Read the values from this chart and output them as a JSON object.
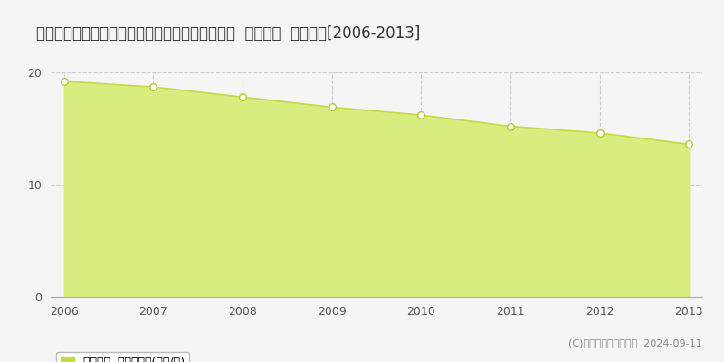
{
  "title": "和歌山県日高郡みなべ町徳蔵字白田１５６番４外  地価公示  地価推移[2006-2013]",
  "years": [
    2006,
    2007,
    2008,
    2009,
    2010,
    2011,
    2012,
    2013
  ],
  "values": [
    19.2,
    18.7,
    17.8,
    16.9,
    16.2,
    15.2,
    14.6,
    13.6
  ],
  "ylim": [
    0,
    20
  ],
  "yticks": [
    0,
    10,
    20
  ],
  "line_color": "#c8d840",
  "fill_color": "#d8ed80",
  "marker_color": "#ffffff",
  "marker_edge_color": "#b8c830",
  "bg_color": "#f5f5f5",
  "grid_color": "#cccccc",
  "legend_label": "地価公示  平均坪単価(万円/坪)",
  "legend_square_color": "#c8d840",
  "copyright_text": "(C)土地価格ドットコム  2024-09-11",
  "title_fontsize": 12,
  "axis_fontsize": 9,
  "legend_fontsize": 9
}
